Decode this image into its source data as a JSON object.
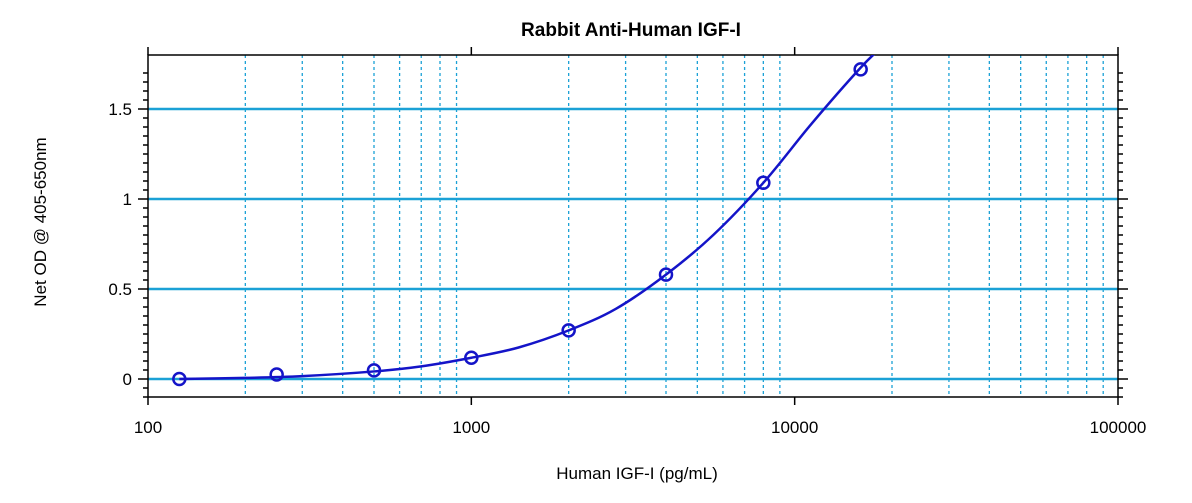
{
  "chart_data": {
    "type": "scatter",
    "title": "Rabbit Anti-Human IGF-I",
    "xlabel": "Human IGF-I (pg/mL)",
    "ylabel": "Net OD @ 405-650nm",
    "x_scale": "log",
    "xlim": [
      100,
      100000
    ],
    "ylim": [
      -0.1,
      1.8
    ],
    "x_tick_labels": [
      "100",
      "1000",
      "10000",
      "100000"
    ],
    "x_ticks": [
      100,
      1000,
      10000,
      100000
    ],
    "y_tick_labels": [
      "0",
      "0.5",
      "1",
      "1.5"
    ],
    "y_ticks": [
      0,
      0.5,
      1,
      1.5
    ],
    "grid": true,
    "colors": {
      "grid": "#1ba1d6",
      "series": "#1414c8",
      "axes": "#000000"
    },
    "series": [
      {
        "points": [
          {
            "x": 125,
            "y": 0.0
          },
          {
            "x": 250,
            "y": 0.025
          },
          {
            "x": 500,
            "y": 0.048
          },
          {
            "x": 1000,
            "y": 0.118
          },
          {
            "x": 2000,
            "y": 0.27
          },
          {
            "x": 4000,
            "y": 0.58
          },
          {
            "x": 8000,
            "y": 1.09
          },
          {
            "x": 16000,
            "y": 1.72
          }
        ],
        "curve": [
          {
            "x": 125,
            "y": 0.0
          },
          {
            "x": 200,
            "y": 0.006
          },
          {
            "x": 300,
            "y": 0.016
          },
          {
            "x": 500,
            "y": 0.042
          },
          {
            "x": 700,
            "y": 0.07
          },
          {
            "x": 1000,
            "y": 0.118
          },
          {
            "x": 1400,
            "y": 0.175
          },
          {
            "x": 2000,
            "y": 0.27
          },
          {
            "x": 2800,
            "y": 0.39
          },
          {
            "x": 4000,
            "y": 0.58
          },
          {
            "x": 5600,
            "y": 0.8
          },
          {
            "x": 8000,
            "y": 1.09
          },
          {
            "x": 11300,
            "y": 1.42
          },
          {
            "x": 16000,
            "y": 1.73
          },
          {
            "x": 18500,
            "y": 1.84
          }
        ]
      }
    ]
  }
}
